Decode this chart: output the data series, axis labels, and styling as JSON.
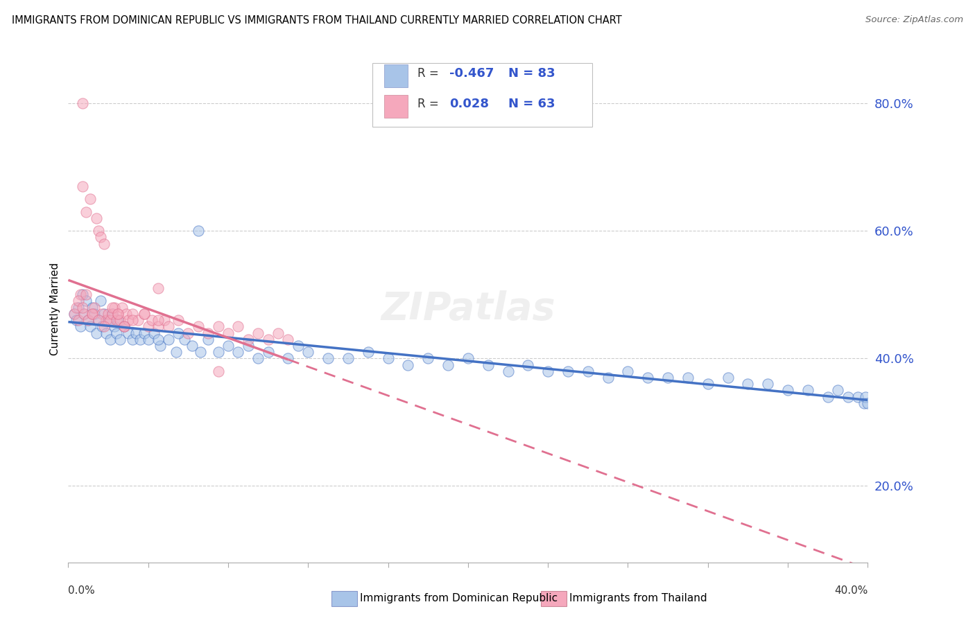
{
  "title": "IMMIGRANTS FROM DOMINICAN REPUBLIC VS IMMIGRANTS FROM THAILAND CURRENTLY MARRIED CORRELATION CHART",
  "source": "Source: ZipAtlas.com",
  "ylabel": "Currently Married",
  "y_ticks": [
    0.2,
    0.4,
    0.6,
    0.8
  ],
  "x_range": [
    0.0,
    0.4
  ],
  "y_range": [
    0.08,
    0.875
  ],
  "series1_color": "#a8c4e8",
  "series2_color": "#f5a8bc",
  "line1_color": "#4472c4",
  "line2_color": "#e07090",
  "R1": -0.467,
  "N1": 83,
  "R2": 0.028,
  "N2": 63,
  "legend_label1": "Immigrants from Dominican Republic",
  "legend_label2": "Immigrants from Thailand",
  "watermark": "ZIPatlas",
  "grid_color": "#cccccc",
  "marker_size": 120,
  "marker_alpha": 0.55,
  "series1_x": [
    0.003,
    0.004,
    0.005,
    0.006,
    0.007,
    0.008,
    0.009,
    0.01,
    0.011,
    0.012,
    0.013,
    0.014,
    0.015,
    0.016,
    0.017,
    0.018,
    0.019,
    0.02,
    0.021,
    0.022,
    0.023,
    0.024,
    0.025,
    0.026,
    0.028,
    0.03,
    0.032,
    0.034,
    0.036,
    0.038,
    0.04,
    0.043,
    0.046,
    0.05,
    0.054,
    0.058,
    0.062,
    0.066,
    0.07,
    0.075,
    0.08,
    0.085,
    0.09,
    0.095,
    0.1,
    0.11,
    0.12,
    0.13,
    0.14,
    0.15,
    0.16,
    0.17,
    0.18,
    0.19,
    0.2,
    0.21,
    0.22,
    0.23,
    0.24,
    0.25,
    0.26,
    0.27,
    0.28,
    0.29,
    0.3,
    0.31,
    0.32,
    0.33,
    0.34,
    0.35,
    0.36,
    0.37,
    0.38,
    0.385,
    0.39,
    0.395,
    0.398,
    0.399,
    0.4,
    0.045,
    0.055,
    0.065,
    0.115
  ],
  "series1_y": [
    0.47,
    0.46,
    0.48,
    0.45,
    0.5,
    0.47,
    0.49,
    0.46,
    0.45,
    0.48,
    0.47,
    0.44,
    0.46,
    0.49,
    0.45,
    0.47,
    0.44,
    0.46,
    0.43,
    0.47,
    0.45,
    0.44,
    0.46,
    0.43,
    0.45,
    0.44,
    0.43,
    0.44,
    0.43,
    0.44,
    0.43,
    0.44,
    0.42,
    0.43,
    0.41,
    0.43,
    0.42,
    0.41,
    0.43,
    0.41,
    0.42,
    0.41,
    0.42,
    0.4,
    0.41,
    0.4,
    0.41,
    0.4,
    0.4,
    0.41,
    0.4,
    0.39,
    0.4,
    0.39,
    0.4,
    0.39,
    0.38,
    0.39,
    0.38,
    0.38,
    0.38,
    0.37,
    0.38,
    0.37,
    0.37,
    0.37,
    0.36,
    0.37,
    0.36,
    0.36,
    0.35,
    0.35,
    0.34,
    0.35,
    0.34,
    0.34,
    0.33,
    0.34,
    0.33,
    0.43,
    0.44,
    0.6,
    0.42
  ],
  "series2_x": [
    0.003,
    0.004,
    0.005,
    0.006,
    0.007,
    0.008,
    0.009,
    0.01,
    0.011,
    0.012,
    0.013,
    0.014,
    0.015,
    0.016,
    0.017,
    0.018,
    0.019,
    0.02,
    0.021,
    0.022,
    0.023,
    0.024,
    0.025,
    0.026,
    0.027,
    0.028,
    0.029,
    0.03,
    0.032,
    0.035,
    0.038,
    0.04,
    0.042,
    0.045,
    0.048,
    0.05,
    0.055,
    0.06,
    0.065,
    0.07,
    0.075,
    0.08,
    0.085,
    0.09,
    0.095,
    0.1,
    0.105,
    0.11,
    0.005,
    0.007,
    0.009,
    0.012,
    0.015,
    0.018,
    0.022,
    0.025,
    0.028,
    0.032,
    0.038,
    0.045,
    0.007,
    0.045,
    0.075
  ],
  "series2_y": [
    0.47,
    0.48,
    0.46,
    0.5,
    0.67,
    0.47,
    0.63,
    0.46,
    0.65,
    0.47,
    0.48,
    0.62,
    0.6,
    0.59,
    0.47,
    0.58,
    0.46,
    0.47,
    0.46,
    0.47,
    0.48,
    0.46,
    0.47,
    0.46,
    0.48,
    0.45,
    0.47,
    0.46,
    0.47,
    0.46,
    0.47,
    0.45,
    0.46,
    0.45,
    0.46,
    0.45,
    0.46,
    0.44,
    0.45,
    0.44,
    0.45,
    0.44,
    0.45,
    0.43,
    0.44,
    0.43,
    0.44,
    0.43,
    0.49,
    0.48,
    0.5,
    0.47,
    0.46,
    0.45,
    0.48,
    0.47,
    0.45,
    0.46,
    0.47,
    0.46,
    0.8,
    0.51,
    0.38
  ]
}
